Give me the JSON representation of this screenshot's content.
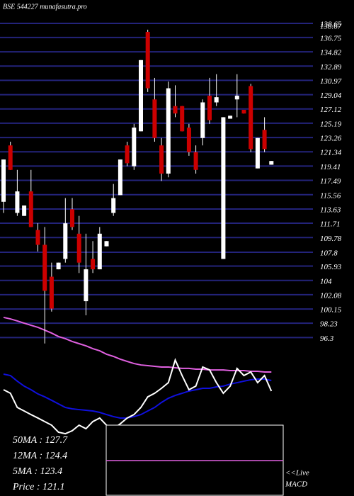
{
  "chart_data": {
    "type": "candlestick",
    "title": "BSE 544227 munafasutra.pro",
    "high_label": 138.67,
    "ylim": [
      95,
      141.8
    ],
    "yticks": [
      138.65,
      136.75,
      134.82,
      132.89,
      130.97,
      129.04,
      127.12,
      125.19,
      123.26,
      121.34,
      119.41,
      117.49,
      115.56,
      113.63,
      111.71,
      109.78,
      107.8,
      105.93,
      104,
      102.08,
      100.15,
      98.23,
      96.3
    ],
    "grid": true,
    "up_color": "#ffffff",
    "down_color": "#cc0000",
    "open": [
      114.6,
      122.2,
      113.1,
      112.7,
      116.0,
      110.8,
      108.8,
      104.5,
      105.5,
      106.9,
      113.6,
      110.3,
      101.2,
      106.9,
      105.5,
      108.6,
      113.1,
      115.5,
      122.2,
      119.4,
      124.1,
      137.5,
      128.4,
      122.2,
      118.4,
      127.5,
      127.5,
      124.6,
      121.3,
      123.2,
      128.9,
      128.0,
      106.9,
      125.8,
      128.4,
      127.0,
      130.2,
      119.1,
      124.3,
      119.6
    ],
    "high": [
      120.3,
      122.7,
      118.9,
      114.1,
      118.9,
      111.7,
      111.2,
      106.4,
      106.4,
      115.1,
      115.1,
      112.7,
      110.3,
      109.3,
      111.2,
      109.3,
      117.0,
      120.3,
      122.7,
      125.1,
      133.7,
      137.8,
      131.3,
      123.2,
      130.8,
      130.3,
      127.5,
      125.1,
      122.2,
      128.4,
      131.3,
      131.8,
      126.0,
      126.2,
      131.8,
      127.0,
      130.5,
      123.2,
      126.0,
      120.1
    ],
    "low": [
      113.1,
      118.9,
      112.7,
      112.7,
      111.2,
      107.9,
      95.5,
      99.8,
      105.5,
      106.4,
      110.8,
      105.0,
      99.3,
      105.0,
      105.5,
      108.6,
      112.7,
      115.5,
      119.4,
      118.9,
      124.1,
      129.4,
      122.7,
      117.4,
      117.9,
      126.0,
      124.1,
      120.8,
      118.4,
      122.2,
      125.1,
      127.5,
      106.9,
      125.8,
      126.0,
      126.5,
      121.3,
      119.1,
      121.3,
      119.6
    ],
    "close": [
      120.3,
      118.9,
      116.0,
      114.1,
      111.2,
      108.8,
      102.6,
      100.2,
      106.4,
      111.7,
      111.2,
      106.4,
      105.5,
      105.5,
      110.3,
      109.3,
      115.1,
      120.3,
      119.8,
      124.6,
      133.7,
      129.9,
      123.2,
      118.4,
      129.9,
      126.5,
      124.1,
      121.3,
      118.9,
      128.0,
      125.6,
      128.7,
      126.0,
      126.2,
      128.9,
      126.5,
      121.7,
      123.2,
      121.7,
      120.1
    ],
    "indicator_ylim": [
      0,
      100
    ],
    "indicators": [
      {
        "color": "#e060e0",
        "values": [
          95.6,
          94.4,
          92.8,
          91.1,
          89.4,
          87.8,
          85.6,
          83.3,
          80.6,
          78.9,
          76.7,
          75,
          73.3,
          71.1,
          69.4,
          66.7,
          65,
          62.8,
          61.1,
          59.4,
          58.3,
          57.8,
          57.2,
          56.7,
          56.7,
          56.1,
          55.6,
          55.6,
          55,
          55,
          54.4,
          54.4,
          54.4,
          53.9,
          53.9,
          53.9,
          53.3,
          53.3,
          52.8,
          52.8
        ]
      },
      {
        "color": "#1010dd",
        "values": [
          51.1,
          50,
          45.6,
          41.7,
          38.9,
          35.6,
          33.3,
          30.6,
          27.8,
          25,
          23.9,
          23.3,
          22.8,
          22.2,
          21.1,
          19.4,
          17.8,
          16.7,
          16.7,
          17.8,
          19.4,
          22.2,
          25,
          28.9,
          32.2,
          34.4,
          36.1,
          37.8,
          38.9,
          40,
          40,
          41.1,
          41.7,
          43.3,
          44.4,
          45.6,
          46.7,
          47.2,
          47.2,
          46.1
        ]
      },
      {
        "color": "#ffffff",
        "values": [
          38.9,
          36.1,
          25,
          22.2,
          19.4,
          16.7,
          13.9,
          11.1,
          5.6,
          4.4,
          6.7,
          11.1,
          8.3,
          13.9,
          16.7,
          11.1,
          8.3,
          12.2,
          16.7,
          19.4,
          25,
          33.3,
          36.1,
          40,
          44.4,
          62.2,
          50,
          38.9,
          41.7,
          56.7,
          54.4,
          44.4,
          36.1,
          41.7,
          55.6,
          50,
          52.8,
          44.4,
          50,
          37.8
        ]
      }
    ],
    "info": [
      "50MA : 127.7",
      "12MA : 124.4",
      "5MA : 123.4",
      "Price   : 121.1"
    ],
    "macd_label": [
      "<<Live",
      "MACD"
    ]
  }
}
